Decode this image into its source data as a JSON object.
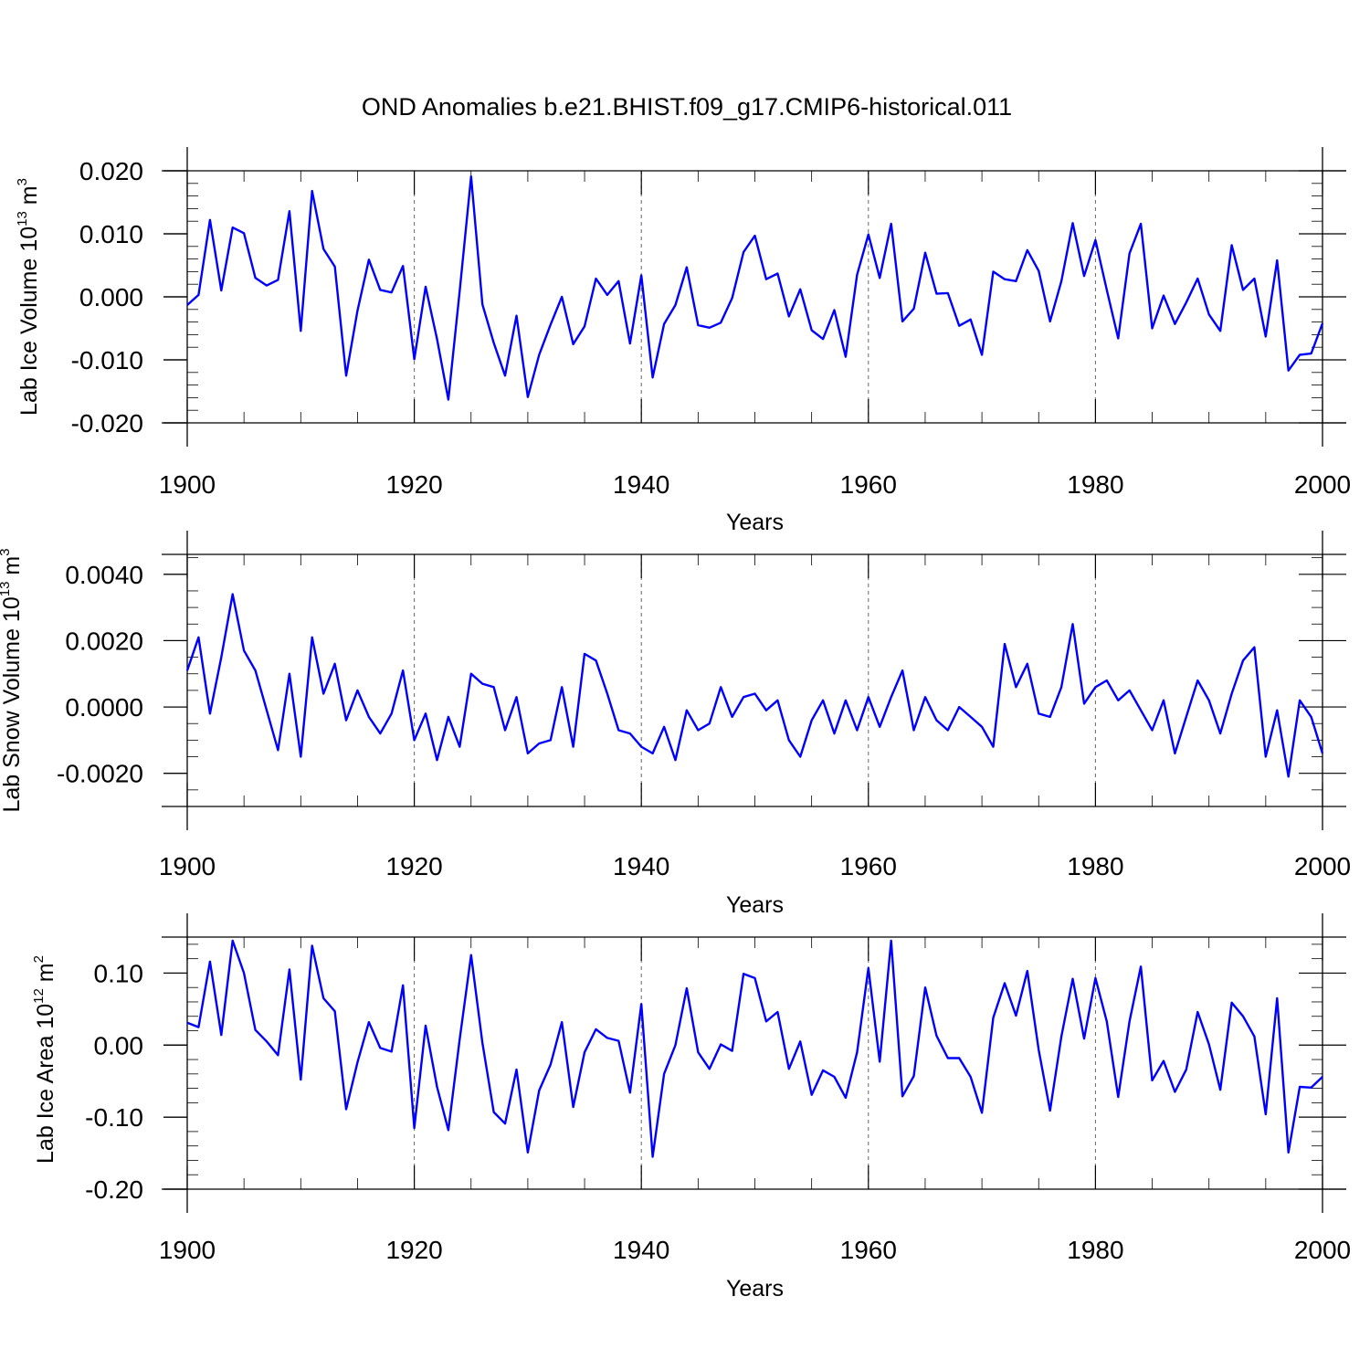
{
  "figure": {
    "title": "OND Anomalies b.e21.BHIST.f09_g17.CMIP6-historical.011"
  },
  "colors": {
    "series": "#0000ff",
    "axis": "#000000",
    "grid": "#666666"
  },
  "chart_data": [
    {
      "type": "line",
      "xlabel": "Years",
      "ylabel_main": "Lab Ice Volume 10",
      "ylabel_sup": "13",
      "ylabel_unit": " m",
      "ylabel_unit_sup": "3",
      "xlim": [
        1900,
        2000
      ],
      "ylim": [
        -0.02,
        0.02
      ],
      "grid_x": [
        1920,
        1940,
        1960,
        1980
      ],
      "x_ticks": [
        1900,
        1920,
        1940,
        1960,
        1980,
        2000
      ],
      "x_tick_labels": [
        "1900",
        "1920",
        "1940",
        "1960",
        "1980",
        "2000"
      ],
      "y_ticks": [
        -0.02,
        -0.01,
        0,
        0.01,
        0.02
      ],
      "y_tick_labels": [
        "-0.020",
        "-0.010",
        "0.000",
        "0.010",
        "0.020"
      ],
      "y_minor_step": 0.002,
      "x_start": 1900,
      "values": [
        -0.0013,
        0.0003,
        0.0122,
        0.001,
        0.011,
        0.0101,
        0.003,
        0.0018,
        0.0027,
        0.0136,
        -0.0054,
        0.0168,
        0.0076,
        0.0048,
        -0.0125,
        -0.0022,
        0.0059,
        0.0011,
        0.0007,
        0.0049,
        -0.0099,
        0.0016,
        -0.0067,
        -0.0163,
        0.0009,
        0.0191,
        -0.0012,
        -0.0073,
        -0.0125,
        -0.003,
        -0.0159,
        -0.0092,
        -0.0044,
        0.0,
        -0.0075,
        -0.0047,
        0.0029,
        0.0003,
        0.0025,
        -0.0074,
        0.0034,
        -0.0128,
        -0.0043,
        -0.0013,
        0.0047,
        -0.0045,
        -0.0049,
        -0.0041,
        -0.0002,
        0.0071,
        0.0097,
        0.0028,
        0.0037,
        -0.0031,
        0.0012,
        -0.0053,
        -0.0067,
        -0.0021,
        -0.0095,
        0.0035,
        0.0099,
        0.003,
        0.0116,
        -0.0039,
        -0.0019,
        0.007,
        0.0005,
        0.0006,
        -0.0046,
        -0.0036,
        -0.0092,
        0.004,
        0.0028,
        0.0025,
        0.0074,
        0.0041,
        -0.0039,
        0.0025,
        0.0117,
        0.0033,
        0.009,
        0.0011,
        -0.0066,
        0.0069,
        0.0116,
        -0.005,
        0.0002,
        -0.0043,
        -0.0009,
        0.0029,
        -0.0028,
        -0.0054,
        0.0082,
        0.0011,
        0.0029,
        -0.0063,
        0.0058,
        -0.0117,
        -0.0092,
        -0.009,
        -0.0042
      ]
    },
    {
      "type": "line",
      "xlabel": "Years",
      "ylabel_main": "Lab Snow Volume 10",
      "ylabel_sup": "13",
      "ylabel_unit": " m",
      "ylabel_unit_sup": "3",
      "xlim": [
        1900,
        2000
      ],
      "ylim": [
        -0.003,
        0.0046
      ],
      "grid_x": [
        1920,
        1940,
        1960,
        1980
      ],
      "x_ticks": [
        1900,
        1920,
        1940,
        1960,
        1980,
        2000
      ],
      "x_tick_labels": [
        "1900",
        "1920",
        "1940",
        "1960",
        "1980",
        "2000"
      ],
      "y_ticks": [
        -0.002,
        0,
        0.002,
        0.004
      ],
      "y_tick_labels": [
        "-0.0020",
        "0.0000",
        "0.0020",
        "0.0040"
      ],
      "y_minor_step": 0.0005,
      "x_start": 1900,
      "values": [
        0.0011,
        0.0021,
        -0.0002,
        0.0015,
        0.0034,
        0.0017,
        0.0011,
        -0.0001,
        -0.0013,
        0.001,
        -0.0015,
        0.0021,
        0.0004,
        0.0013,
        -0.0004,
        0.0005,
        -0.0003,
        -0.0008,
        -0.0002,
        0.0011,
        -0.001,
        -0.0002,
        -0.0016,
        -0.0003,
        -0.0012,
        0.001,
        0.0007,
        0.0006,
        -0.0007,
        0.0003,
        -0.0014,
        -0.0011,
        -0.001,
        0.0006,
        -0.0012,
        0.0016,
        0.0014,
        0.0004,
        -0.0007,
        -0.0008,
        -0.0012,
        -0.0014,
        -0.0006,
        -0.0016,
        -0.0001,
        -0.0007,
        -0.0005,
        0.0006,
        -0.0003,
        0.0003,
        0.0004,
        -0.0001,
        0.0002,
        -0.001,
        -0.0015,
        -0.0004,
        0.0002,
        -0.0008,
        0.0002,
        -0.0007,
        0.0003,
        -0.0006,
        0.0003,
        0.0011,
        -0.0007,
        0.0003,
        -0.0004,
        -0.0007,
        0.0,
        -0.0003,
        -0.0006,
        -0.0012,
        0.0019,
        0.0006,
        0.0013,
        -0.0002,
        -0.0003,
        0.0006,
        0.0025,
        0.0001,
        0.0006,
        0.0008,
        0.0002,
        0.0005,
        -0.0001,
        -0.0007,
        0.0002,
        -0.0014,
        -0.0003,
        0.0008,
        0.0002,
        -0.0008,
        0.0004,
        0.0014,
        0.0018,
        -0.0015,
        -0.0001,
        -0.0021,
        0.0002,
        -0.0003,
        -0.0014
      ]
    },
    {
      "type": "line",
      "xlabel": "Years",
      "ylabel_main": "Lab Ice Area 10",
      "ylabel_sup": "12",
      "ylabel_unit": " m",
      "ylabel_unit_sup": "2",
      "xlim": [
        1900,
        2000
      ],
      "ylim": [
        -0.2,
        0.15
      ],
      "grid_x": [
        1920,
        1940,
        1960,
        1980
      ],
      "x_ticks": [
        1900,
        1920,
        1940,
        1960,
        1980,
        2000
      ],
      "x_tick_labels": [
        "1900",
        "1920",
        "1940",
        "1960",
        "1980",
        "2000"
      ],
      "y_ticks": [
        -0.2,
        -0.1,
        0,
        0.1
      ],
      "y_tick_labels": [
        "-0.20",
        "-0.10",
        "0.00",
        "0.10"
      ],
      "y_minor_step": 0.02,
      "x_start": 1900,
      "values": [
        0.031,
        0.025,
        0.116,
        0.014,
        0.145,
        0.1,
        0.021,
        0.005,
        -0.014,
        0.105,
        -0.048,
        0.138,
        0.065,
        0.047,
        -0.089,
        -0.024,
        0.032,
        -0.004,
        -0.009,
        0.083,
        -0.115,
        0.027,
        -0.058,
        -0.118,
        0.008,
        0.125,
        0.003,
        -0.093,
        -0.109,
        -0.034,
        -0.149,
        -0.063,
        -0.027,
        0.032,
        -0.086,
        -0.01,
        0.022,
        0.01,
        0.006,
        -0.066,
        0.057,
        -0.155,
        -0.04,
        0.0,
        0.079,
        -0.01,
        -0.033,
        0.001,
        -0.008,
        0.099,
        0.093,
        0.033,
        0.046,
        -0.033,
        0.005,
        -0.069,
        -0.035,
        -0.044,
        -0.073,
        -0.01,
        0.107,
        -0.023,
        0.145,
        -0.071,
        -0.043,
        0.08,
        0.013,
        -0.018,
        -0.018,
        -0.044,
        -0.094,
        0.038,
        0.086,
        0.041,
        0.103,
        -0.007,
        -0.091,
        0.012,
        0.092,
        0.009,
        0.093,
        0.033,
        -0.072,
        0.033,
        0.109,
        -0.049,
        -0.022,
        -0.065,
        -0.034,
        0.046,
        0.001,
        -0.062,
        0.059,
        0.04,
        0.012,
        -0.096,
        0.065,
        -0.149,
        -0.058,
        -0.059,
        -0.044
      ]
    }
  ]
}
